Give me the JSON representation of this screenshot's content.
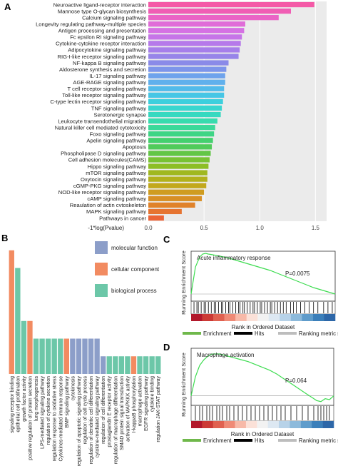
{
  "panels": {
    "a": {
      "letter": "A"
    },
    "b": {
      "letter": "B"
    },
    "c": {
      "letter": "C"
    },
    "d": {
      "letter": "D"
    }
  },
  "chart_data": [
    {
      "panel": "A",
      "type": "bar",
      "orientation": "horizontal",
      "xlabel": "-1*log(Pvalue)",
      "xlim": [
        0,
        1.6
      ],
      "xticks": [
        0.0,
        0.5,
        1.0,
        1.5
      ],
      "xtick_labels": [
        "0.0",
        "0.5",
        "1.0",
        "1.5"
      ],
      "grid": true,
      "categories": [
        "Neuroactive ligand-receptor interaction",
        "Mannose type O-glycan biosynthesis",
        "Calcium signaling pathway",
        "Longevity regulating pathway-multiple species",
        "Antigen processing and presentation",
        "Fc epsilon RI signaling pathway",
        "Cytokine-cytokine receptor interaction",
        "Adipocytokine signaling pathway",
        "RIG-I-like receptor signaling pathway",
        "NF-kappa B signaling pathway",
        "Aldosterone synthesis and secretion",
        "IL-17 signaling pathway",
        "AGE-RAGE signaling pathway",
        "T cell receptor signaling pathway",
        "Toll-like receptor signaling pathway",
        "C-type lectin receptor signaling pathway",
        "TNF signaling pathway",
        "Serotonergic synapse",
        "Leukocyte transendothelial migration",
        "Natural killer cell mediated cytotoxicity",
        "Foxo signaling pathway",
        "Apelin signaling pathway",
        "Apoptosis",
        "Phospholipase D signaling pathway",
        "Cell adhesion molecules(CAMS)",
        "Hippo signaling pathway",
        "mTOR signaling pathway",
        "Oxytocin signaling pathway",
        "cGMP-PKG signaling pathway",
        "NOD-like receptor signaling pathway",
        "cAMP signaling pathway",
        "Reaulation of actin cvtoskeleton",
        "MAPK signaling pathway",
        "Pathways in cancer"
      ],
      "values": [
        1.49,
        1.28,
        1.17,
        0.87,
        0.86,
        0.84,
        0.83,
        0.82,
        0.81,
        0.72,
        0.7,
        0.69,
        0.69,
        0.68,
        0.68,
        0.67,
        0.66,
        0.65,
        0.62,
        0.6,
        0.59,
        0.58,
        0.57,
        0.56,
        0.55,
        0.54,
        0.53,
        0.53,
        0.52,
        0.5,
        0.48,
        0.42,
        0.3,
        0.14
      ],
      "colors": [
        "#f45aa7",
        "#f05eb4",
        "#ea64c6",
        "#e06cd8",
        "#d571e3",
        "#c674e8",
        "#b679ea",
        "#a67eea",
        "#9784e9",
        "#8a8ae8",
        "#7d95ea",
        "#6ea3ec",
        "#60b0ec",
        "#52bbea",
        "#46c6e5",
        "#3ccfdd",
        "#38d6cf",
        "#36d9c0",
        "#38dbae",
        "#3bd99a",
        "#3ed585",
        "#44d06e",
        "#50cb5a",
        "#62c646",
        "#78c234",
        "#8cbe26",
        "#a0b820",
        "#b2b11c",
        "#c2a81c",
        "#cf9c20",
        "#d88f24",
        "#e0822a",
        "#e67431",
        "#ec6437"
      ]
    },
    {
      "panel": "B",
      "type": "bar",
      "orientation": "vertical",
      "ylim": [
        0,
        8
      ],
      "grid": false,
      "legend_position": "top-right",
      "legend": [
        {
          "name": "molecular function",
          "color": "#8c9ec9"
        },
        {
          "name": "cellular component",
          "color": "#f28b61"
        },
        {
          "name": "biological process",
          "color": "#6cc7a8"
        }
      ],
      "categories": [
        "signaling receptor binding",
        "epithelial cell proliferation",
        "growth factor activity",
        "positive regulation of protein secretion",
        "lung morphogenesis",
        "LPS-mediated signaling pathway",
        "regulation of cytokine secretion",
        "regulation response to oxidative stress",
        "Cytokines-mediated immune response",
        "BMP signaling pathway",
        "cytokinesis",
        "regulation of apoptotic signaling pathway",
        "regulation of cell cycle process",
        "regulation of dendritic cell differentiation",
        "cytokine-mediated signaling pathway",
        "regulation of cell differentiation",
        "prostaglandin E receptor activity",
        "regulation of macrophage differentiation",
        "SMAD protein signal transduction",
        "activation of MAPKKK activity",
        "I-kappaB phosphorylation",
        "macrophage activation",
        "EGFR signaling pathway",
        "cytokine binding",
        "regulation JAK-STAT pathway"
      ],
      "values": [
        7,
        6,
        3,
        3,
        2,
        2,
        2,
        2,
        2,
        2,
        2,
        2,
        2,
        2,
        2,
        1,
        1,
        1,
        1,
        1,
        1,
        1,
        1,
        1,
        1
      ],
      "groups": [
        "cellular component",
        "biological process",
        "biological process",
        "cellular component",
        "biological process",
        "biological process",
        "biological process",
        "biological process",
        "biological process",
        "cellular component",
        "molecular function",
        "molecular function",
        "molecular function",
        "molecular function",
        "molecular function",
        "molecular function",
        "biological process",
        "biological process",
        "biological process",
        "biological process",
        "cellular component",
        "biological process",
        "biological process",
        "biological process",
        "biological process"
      ]
    },
    {
      "panel": "C",
      "type": "line",
      "title": "Acute inflammatory response",
      "ylabel": "Running Enrichment Score",
      "xlabel": "Rank in Ordered Dataset",
      "annotation": "P=0.0075",
      "ylim": [
        -0.1,
        0.6
      ],
      "x": [
        0,
        3,
        6,
        8,
        10,
        12,
        15,
        20,
        25,
        30,
        35,
        40,
        45,
        50,
        55,
        60,
        65,
        70,
        75,
        80,
        85,
        90,
        95,
        100
      ],
      "y": [
        0.0,
        0.38,
        0.52,
        0.56,
        0.57,
        0.56,
        0.55,
        0.53,
        0.51,
        0.48,
        0.45,
        0.42,
        0.39,
        0.36,
        0.33,
        0.29,
        0.25,
        0.21,
        0.17,
        0.13,
        0.09,
        0.06,
        0.03,
        0.0
      ],
      "hits": [
        2,
        4,
        5,
        7,
        9,
        10,
        12,
        14,
        16,
        17,
        19,
        21,
        22,
        24,
        26,
        27,
        29,
        31,
        33,
        34,
        36,
        37,
        39,
        41,
        43,
        44,
        46,
        48,
        49,
        51,
        53,
        55,
        56,
        58,
        60,
        62,
        64,
        66,
        69,
        71,
        73,
        76,
        79,
        82,
        85,
        88,
        92,
        95,
        98
      ],
      "legend": [
        {
          "name": "Enrichment",
          "color": "#6fb84b"
        },
        {
          "name": "Hits",
          "color": "#000000"
        },
        {
          "name": "Ranking metric score",
          "color": "#bdbdbd"
        }
      ]
    },
    {
      "panel": "D",
      "type": "line",
      "title": "Macrophage activation",
      "ylabel": "Running Enrichment Score",
      "xlabel": "Rank in Ordered Dataset",
      "annotation": "P=0.064",
      "ylim": [
        -0.1,
        0.5
      ],
      "x": [
        0,
        3,
        6,
        9,
        12,
        15,
        20,
        25,
        30,
        35,
        40,
        45,
        50,
        55,
        60,
        65,
        70,
        75,
        80,
        85,
        88,
        91,
        94,
        97,
        100
      ],
      "y": [
        0.0,
        0.2,
        0.32,
        0.38,
        0.42,
        0.44,
        0.44,
        0.42,
        0.4,
        0.38,
        0.36,
        0.33,
        0.3,
        0.27,
        0.23,
        0.18,
        0.13,
        0.08,
        0.03,
        -0.02,
        -0.05,
        -0.06,
        -0.03,
        -0.04,
        0.0
      ],
      "hits": [
        3,
        6,
        8,
        11,
        13,
        15,
        18,
        20,
        22,
        25,
        27,
        30,
        33,
        36,
        39,
        42,
        45,
        48,
        51,
        54,
        57,
        60,
        63,
        66,
        70,
        74,
        78,
        82,
        86,
        89,
        91,
        93,
        95,
        97
      ],
      "legend": [
        {
          "name": "Enrichment",
          "color": "#6fb84b"
        },
        {
          "name": "Hits",
          "color": "#000000"
        },
        {
          "name": "Ranking metric score",
          "color": "#bdbdbd"
        }
      ]
    }
  ]
}
